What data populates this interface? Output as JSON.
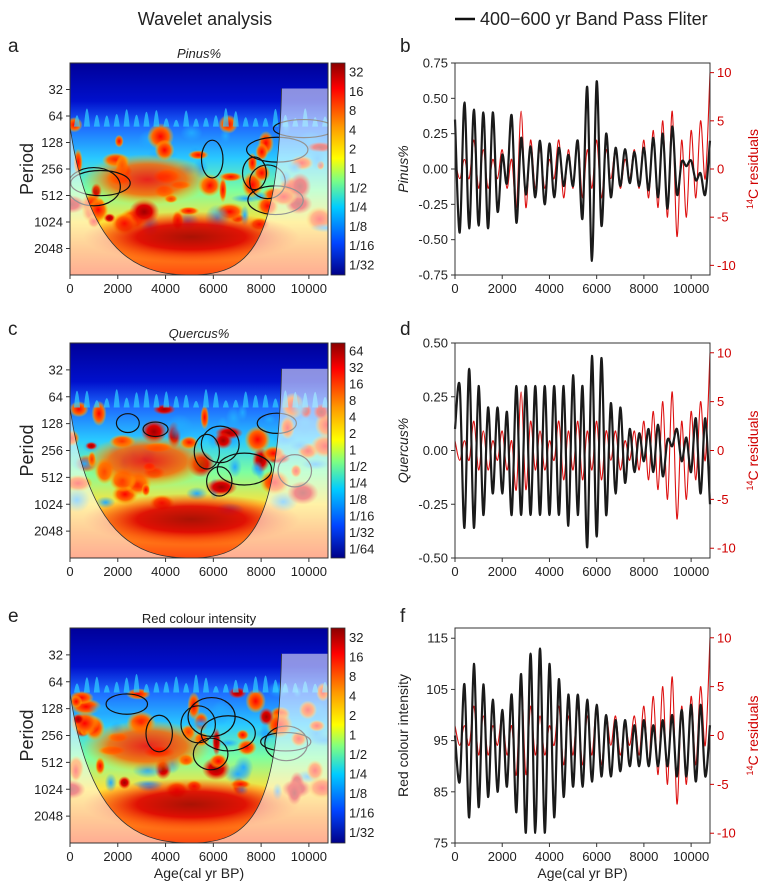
{
  "header": {
    "left_title": "Wavelet analysis",
    "right_legend": "400−600 yr Band Pass Fliter"
  },
  "colors": {
    "black_series": "#1a1a1a",
    "red_series": "#dd1111",
    "red_axis": "#cc0000"
  },
  "chart_data": [
    {
      "id": "a",
      "type": "heatmap",
      "title": "Pinus%",
      "title_italic": true,
      "xlabel": "",
      "ylabel": "Period",
      "xlim": [
        0,
        10800
      ],
      "xticks": [
        0,
        2000,
        4000,
        6000,
        8000,
        10000
      ],
      "yticks": [
        32,
        64,
        128,
        256,
        512,
        1024,
        2048
      ],
      "colorbar_ticks": [
        "32",
        "16",
        "8",
        "4",
        "2",
        "1",
        "1/2",
        "1/4",
        "1/8",
        "1/16",
        "1/32"
      ]
    },
    {
      "id": "b",
      "type": "line",
      "xlabel": "",
      "ylabel": "Pinus%",
      "ylabel_italic": true,
      "y2label": "14C residuals",
      "xlim": [
        0,
        10800
      ],
      "ylim": [
        -0.75,
        0.75
      ],
      "y2lim": [
        -11,
        11
      ],
      "xticks": [
        0,
        2000,
        4000,
        6000,
        8000,
        10000
      ],
      "yticks": [
        "0.75",
        "0.50",
        "0.25",
        "0.00",
        "-0.25",
        "-0.50",
        "-0.75"
      ],
      "y2ticks": [
        "10",
        "5",
        "0",
        "-5",
        "-10"
      ],
      "series": [
        {
          "name": "Pinus% band pass",
          "color": "black",
          "x": [
            0,
            200,
            400,
            600,
            800,
            1000,
            1200,
            1400,
            1600,
            1800,
            2000,
            2200,
            2400,
            2600,
            2800,
            3000,
            3200,
            3400,
            3600,
            3800,
            4000,
            4200,
            4400,
            4600,
            4800,
            5000,
            5200,
            5400,
            5600,
            5800,
            6000,
            6200,
            6400,
            6600,
            6800,
            7000,
            7200,
            7400,
            7600,
            7800,
            8000,
            8200,
            8400,
            8600,
            8800,
            9000,
            9200,
            9400,
            9600,
            9800,
            10000,
            10200,
            10400,
            10600,
            10800
          ],
          "values": [
            0.35,
            -0.45,
            0.47,
            -0.42,
            0.42,
            -0.4,
            0.4,
            -0.42,
            0.4,
            -0.3,
            0.1,
            -0.1,
            0.38,
            -0.38,
            0.22,
            -0.18,
            0.16,
            -0.2,
            0.2,
            -0.25,
            0.18,
            -0.2,
            0.15,
            -0.12,
            0.1,
            -0.12,
            0.2,
            -0.35,
            0.58,
            -0.65,
            0.62,
            -0.4,
            0.25,
            -0.2,
            0.15,
            -0.12,
            0.14,
            -0.1,
            0.12,
            -0.12,
            0.15,
            -0.15,
            0.22,
            -0.2,
            0.25,
            -0.28,
            0.3,
            -0.18,
            0.05,
            0.02,
            0.06,
            -0.08,
            -0.03,
            -0.18,
            0.2
          ]
        },
        {
          "name": "14C residuals",
          "color": "red",
          "x": [
            0,
            200,
            400,
            600,
            800,
            1000,
            1200,
            1400,
            1600,
            1800,
            2000,
            2200,
            2400,
            2600,
            2800,
            3000,
            3200,
            3400,
            3600,
            3800,
            4000,
            4200,
            4400,
            4600,
            4800,
            5000,
            5200,
            5400,
            5600,
            5800,
            6000,
            6200,
            6400,
            6600,
            6800,
            7000,
            7200,
            7400,
            7600,
            7800,
            8000,
            8200,
            8400,
            8600,
            8800,
            9000,
            9200,
            9400,
            9600,
            9800,
            10000,
            10200,
            10400,
            10600,
            10800
          ],
          "values": [
            1,
            -1,
            1,
            -1,
            3,
            -2,
            2,
            -2,
            1,
            -1,
            2,
            -2,
            1,
            -4,
            6,
            -4,
            3,
            -2,
            2,
            -2,
            1,
            -1,
            3,
            -3,
            2,
            -2,
            3,
            -3,
            2,
            -2,
            3,
            -3,
            2,
            -1,
            2,
            -2,
            1,
            -1,
            2,
            -2,
            3,
            -3,
            4,
            -4,
            5,
            -5,
            6,
            -7,
            3,
            -5,
            4,
            -3,
            5,
            -1,
            10
          ]
        }
      ]
    },
    {
      "id": "c",
      "type": "heatmap",
      "title": "Quercus%",
      "title_italic": true,
      "xlabel": "",
      "ylabel": "Period",
      "xlim": [
        0,
        10800
      ],
      "xticks": [
        0,
        2000,
        4000,
        6000,
        8000,
        10000
      ],
      "yticks": [
        32,
        64,
        128,
        256,
        512,
        1024,
        2048
      ],
      "colorbar_ticks": [
        "64",
        "32",
        "16",
        "8",
        "4",
        "2",
        "1",
        "1/2",
        "1/4",
        "1/8",
        "1/16",
        "1/32",
        "1/64"
      ]
    },
    {
      "id": "d",
      "type": "line",
      "xlabel": "",
      "ylabel": "Quercus%",
      "ylabel_italic": true,
      "y2label": "14C residuals",
      "xlim": [
        0,
        10800
      ],
      "ylim": [
        -0.5,
        0.5
      ],
      "y2lim": [
        -11,
        11
      ],
      "xticks": [
        0,
        2000,
        4000,
        6000,
        8000,
        10000
      ],
      "yticks": [
        "0.50",
        "0.25",
        "0.00",
        "-0.25",
        "-0.50"
      ],
      "y2ticks": [
        "10",
        "5",
        "0",
        "-5",
        "-10"
      ],
      "series": [
        {
          "name": "Quercus% band pass",
          "color": "black",
          "x": [
            0,
            200,
            400,
            600,
            800,
            1000,
            1200,
            1400,
            1600,
            1800,
            2000,
            2200,
            2400,
            2600,
            2800,
            3000,
            3200,
            3400,
            3600,
            3800,
            4000,
            4200,
            4400,
            4600,
            4800,
            5000,
            5200,
            5400,
            5600,
            5800,
            6000,
            6200,
            6400,
            6600,
            6800,
            7000,
            7200,
            7400,
            7600,
            7800,
            8000,
            8200,
            8400,
            8600,
            8800,
            9000,
            9200,
            9400,
            9600,
            9800,
            10000,
            10200,
            10400,
            10600,
            10800
          ],
          "values": [
            0.1,
            0.3,
            -0.36,
            0.38,
            -0.36,
            0.3,
            -0.3,
            0.2,
            -0.2,
            0.2,
            -0.2,
            0.18,
            -0.3,
            0.3,
            -0.3,
            0.3,
            -0.3,
            0.3,
            -0.3,
            0.3,
            -0.3,
            0.3,
            -0.3,
            0.3,
            -0.35,
            0.35,
            -0.3,
            0.3,
            -0.45,
            0.44,
            -0.4,
            0.43,
            -0.3,
            0.22,
            -0.2,
            0.2,
            -0.15,
            0.1,
            -0.1,
            0.08,
            -0.05,
            0.1,
            -0.1,
            0.12,
            -0.12,
            0.05,
            0.02,
            0.1,
            -0.05,
            0.06,
            -0.1,
            0.15,
            -0.2,
            0.15,
            -0.25
          ]
        },
        {
          "name": "14C residuals",
          "color": "red",
          "x": [
            0,
            200,
            400,
            600,
            800,
            1000,
            1200,
            1400,
            1600,
            1800,
            2000,
            2200,
            2400,
            2600,
            2800,
            3000,
            3200,
            3400,
            3600,
            3800,
            4000,
            4200,
            4400,
            4600,
            4800,
            5000,
            5200,
            5400,
            5600,
            5800,
            6000,
            6200,
            6400,
            6600,
            6800,
            7000,
            7200,
            7400,
            7600,
            7800,
            8000,
            8200,
            8400,
            8600,
            8800,
            9000,
            9200,
            9400,
            9600,
            9800,
            10000,
            10200,
            10400,
            10600,
            10800
          ],
          "values": [
            1,
            -1,
            1,
            -1,
            3,
            -2,
            2,
            -2,
            1,
            -1,
            2,
            -2,
            1,
            -4,
            6,
            -4,
            3,
            -2,
            2,
            -2,
            1,
            -1,
            3,
            -3,
            2,
            -2,
            3,
            -3,
            2,
            -2,
            3,
            -3,
            2,
            -1,
            2,
            -2,
            1,
            -1,
            2,
            -2,
            3,
            -3,
            4,
            -4,
            5,
            -5,
            6,
            -7,
            3,
            -5,
            4,
            -3,
            5,
            -1,
            10
          ]
        }
      ]
    },
    {
      "id": "e",
      "type": "heatmap",
      "title": "Red colour intensity",
      "title_italic": false,
      "xlabel": "Age(cal yr BP)",
      "ylabel": "Period",
      "xlim": [
        0,
        10800
      ],
      "xticks": [
        0,
        2000,
        4000,
        6000,
        8000,
        10000
      ],
      "yticks": [
        32,
        64,
        128,
        256,
        512,
        1024,
        2048
      ],
      "colorbar_ticks": [
        "32",
        "16",
        "8",
        "4",
        "2",
        "1",
        "1/2",
        "1/4",
        "1/8",
        "1/16",
        "1/32"
      ]
    },
    {
      "id": "f",
      "type": "line",
      "xlabel": "Age(cal yr BP)",
      "ylabel": "Red colour intensity",
      "ylabel_italic": false,
      "y2label": "14C residuals",
      "xlim": [
        0,
        10800
      ],
      "ylim": [
        75,
        117
      ],
      "y2lim": [
        -11,
        11
      ],
      "xticks": [
        0,
        2000,
        4000,
        6000,
        8000,
        10000
      ],
      "yticks": [
        "115",
        "105",
        "95",
        "85",
        "75"
      ],
      "y2ticks": [
        "10",
        "5",
        "0",
        "-5",
        "-10"
      ],
      "series": [
        {
          "name": "Red colour band pass",
          "color": "black",
          "x": [
            0,
            200,
            400,
            600,
            800,
            1000,
            1200,
            1400,
            1600,
            1800,
            2000,
            2200,
            2400,
            2600,
            2800,
            3000,
            3200,
            3400,
            3600,
            3800,
            4000,
            4200,
            4400,
            4600,
            4800,
            5000,
            5200,
            5400,
            5600,
            5800,
            6000,
            6200,
            6400,
            6600,
            6800,
            7000,
            7200,
            7400,
            7600,
            7800,
            8000,
            8200,
            8400,
            8600,
            8800,
            9000,
            9200,
            9400,
            9600,
            9800,
            10000,
            10200,
            10400,
            10600,
            10800
          ],
          "values": [
            96,
            87,
            106,
            80,
            110,
            82,
            106,
            84,
            103,
            85,
            101,
            86,
            104,
            81,
            108,
            77,
            112,
            77,
            113,
            77,
            110,
            80,
            107,
            84,
            104,
            86,
            104,
            86,
            103,
            87,
            102,
            88,
            100,
            88,
            99,
            89,
            99,
            90,
            98,
            90,
            99,
            90,
            98,
            90,
            99,
            90,
            100,
            88,
            101,
            88,
            102,
            87,
            102,
            88,
            98
          ]
        },
        {
          "name": "14C residuals",
          "color": "red",
          "x": [
            0,
            200,
            400,
            600,
            800,
            1000,
            1200,
            1400,
            1600,
            1800,
            2000,
            2200,
            2400,
            2600,
            2800,
            3000,
            3200,
            3400,
            3600,
            3800,
            4000,
            4200,
            4400,
            4600,
            4800,
            5000,
            5200,
            5400,
            5600,
            5800,
            6000,
            6200,
            6400,
            6600,
            6800,
            7000,
            7200,
            7400,
            7600,
            7800,
            8000,
            8200,
            8400,
            8600,
            8800,
            9000,
            9200,
            9400,
            9600,
            9800,
            10000,
            10200,
            10400,
            10600,
            10800
          ],
          "values": [
            1,
            -1,
            1,
            -1,
            3,
            -2,
            2,
            -2,
            1,
            -1,
            2,
            -2,
            1,
            -4,
            6,
            -4,
            3,
            -2,
            2,
            -2,
            1,
            -1,
            3,
            -3,
            2,
            -2,
            3,
            -3,
            2,
            -2,
            3,
            -3,
            2,
            -1,
            2,
            -2,
            1,
            -1,
            2,
            -2,
            3,
            -3,
            4,
            -4,
            5,
            -5,
            6,
            -7,
            3,
            -5,
            4,
            -3,
            5,
            -1,
            10
          ]
        }
      ]
    }
  ],
  "panel_letters": [
    "a",
    "b",
    "c",
    "d",
    "e",
    "f"
  ],
  "y2label_prefix": "14",
  "y2label_rest": "C residuals"
}
